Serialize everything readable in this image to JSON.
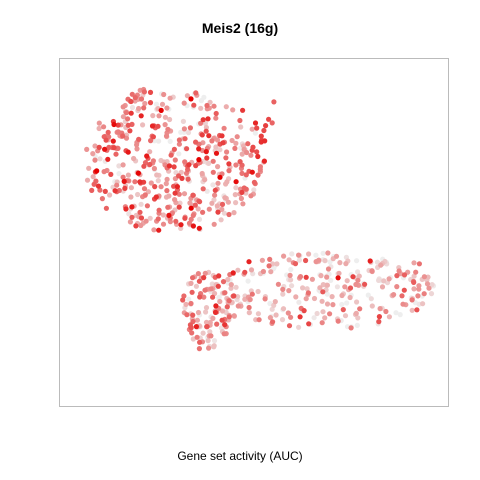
{
  "chart_data": {
    "type": "scatter",
    "title": "Meis2 (16g)",
    "xlabel": "Gene set activity (AUC)",
    "ylabel": "",
    "axes_visible": false,
    "grid": false,
    "legend": "none",
    "color_scale": {
      "low": "#eeeeee",
      "high": "#e50000"
    },
    "point_count": 850,
    "seed": 16,
    "regions": [
      {
        "name": "upper-left-lobe",
        "cx": 0.28,
        "cy": 0.28,
        "rx": 0.25,
        "ry": 0.22,
        "weight": 0.55,
        "activity": 0.35
      },
      {
        "name": "lower-right-band",
        "cx": 0.68,
        "cy": 0.68,
        "rx": 0.32,
        "ry": 0.12,
        "weight": 0.33,
        "activity": 0.2
      },
      {
        "name": "lower-left-tail",
        "cx": 0.37,
        "cy": 0.74,
        "rx": 0.07,
        "ry": 0.12,
        "weight": 0.12,
        "activity": 0.28
      }
    ],
    "hotspots": [
      {
        "x": 0.53,
        "y": 0.14,
        "activity": 0.9
      },
      {
        "x": 0.52,
        "y": 0.24,
        "activity": 0.85
      },
      {
        "x": 0.18,
        "y": 0.06,
        "activity": 0.7
      },
      {
        "x": 0.94,
        "y": 0.64,
        "activity": 0.65
      },
      {
        "x": 0.35,
        "y": 0.81,
        "activity": 0.7
      }
    ]
  },
  "colors": {
    "frame": "#bbbbbb",
    "background": "#ffffff"
  }
}
